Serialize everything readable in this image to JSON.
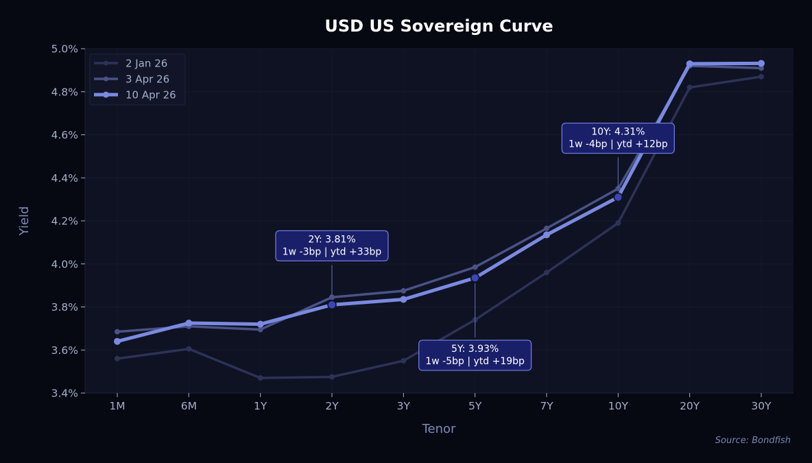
{
  "chart_data": {
    "type": "line",
    "title": "USD US Sovereign Curve",
    "xlabel": "Tenor",
    "ylabel": "Yield",
    "categories": [
      "1M",
      "6M",
      "1Y",
      "2Y",
      "3Y",
      "5Y",
      "7Y",
      "10Y",
      "20Y",
      "30Y"
    ],
    "ylim": [
      3.4,
      5.0
    ],
    "yticks": [
      "3.4%",
      "3.6%",
      "3.8%",
      "4.0%",
      "4.2%",
      "4.4%",
      "4.6%",
      "4.8%",
      "5.0%"
    ],
    "grid": true,
    "legend_position": "top-left",
    "series": [
      {
        "name": "2 Jan 26",
        "color": "#2e3258",
        "values": [
          3.56,
          3.605,
          3.47,
          3.475,
          3.55,
          3.74,
          3.96,
          4.19,
          4.82,
          4.87
        ]
      },
      {
        "name": "3 Apr 26",
        "color": "#4a5288",
        "values": [
          3.685,
          3.71,
          3.695,
          3.845,
          3.875,
          3.985,
          4.165,
          4.35,
          4.92,
          4.91
        ]
      },
      {
        "name": "10 Apr 26",
        "color": "#7b8ae0",
        "values": [
          3.64,
          3.725,
          3.72,
          3.81,
          3.835,
          3.935,
          4.135,
          4.31,
          4.93,
          4.932
        ]
      }
    ],
    "annotations": [
      {
        "tenor": "2Y",
        "value": 3.81,
        "line1": "2Y: 3.81%",
        "line2": "1w -3bp | ytd +33bp",
        "placement": "above"
      },
      {
        "tenor": "5Y",
        "value": 3.935,
        "line1": "5Y: 3.93%",
        "line2": "1w -5bp | ytd +19bp",
        "placement": "below"
      },
      {
        "tenor": "10Y",
        "value": 4.31,
        "line1": "10Y: 4.31%",
        "line2": "1w -4bp | ytd +12bp",
        "placement": "above"
      }
    ],
    "source": "Source: Bondfish"
  }
}
